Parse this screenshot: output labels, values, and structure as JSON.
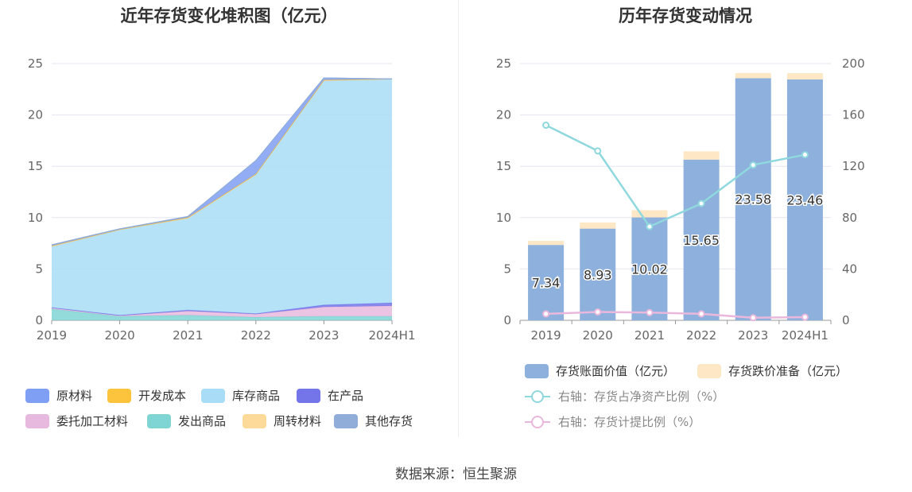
{
  "left_chart": {
    "title": "近年存货变化堆积图（亿元）",
    "legend": [
      {
        "label": "原材料",
        "color": "#7f9ff5"
      },
      {
        "label": "开发成本",
        "color": "#fbc43c"
      },
      {
        "label": "库存商品",
        "color": "#a9ddf7"
      },
      {
        "label": "在产品",
        "color": "#7575ea"
      },
      {
        "label": "委托加工材料",
        "color": "#e8b9de"
      },
      {
        "label": "发出商品",
        "color": "#7fd5d3"
      },
      {
        "label": "周转材料",
        "color": "#fdd99a"
      },
      {
        "label": "其他存货",
        "color": "#90add9"
      }
    ]
  },
  "right_chart": {
    "title": "历年存货变动情况",
    "legend": [
      {
        "label": "存货账面价值（亿元）",
        "color": "#8eb0dc",
        "kind": "bar"
      },
      {
        "label": "存货跌价准备（亿元）",
        "color": "#fde7c4",
        "kind": "bar"
      },
      {
        "label": "右轴：存货占净资产比例（%）",
        "color": "#8fd8de",
        "kind": "line"
      },
      {
        "label": "右轴：存货计提比例（%）",
        "color": "#eab8dc",
        "kind": "line"
      }
    ]
  },
  "chart_data": [
    {
      "type": "area",
      "title": "近年存货变化堆积图（亿元）",
      "x": [
        "2019",
        "2020",
        "2021",
        "2022",
        "2023",
        "2024H1"
      ],
      "ylim": [
        0,
        25
      ],
      "yticks": [
        0,
        5,
        10,
        15,
        20,
        25
      ],
      "grid": true,
      "legend_position": "bottom",
      "series": [
        {
          "name": "发出商品",
          "color": "#7fd5d3",
          "values": [
            1.1,
            0.4,
            0.5,
            0.3,
            0.4,
            0.4
          ]
        },
        {
          "name": "委托加工材料",
          "color": "#e8b9de",
          "values": [
            0.1,
            0.05,
            0.4,
            0.3,
            0.9,
            1.0
          ]
        },
        {
          "name": "在产品",
          "color": "#7575ea",
          "values": [
            0.05,
            0.05,
            0.1,
            0.05,
            0.2,
            0.3
          ]
        },
        {
          "name": "库存商品",
          "color": "#a9ddf7",
          "values": [
            5.9,
            8.3,
            8.9,
            13.5,
            21.8,
            21.8
          ]
        },
        {
          "name": "周转材料",
          "color": "#fdd99a",
          "values": [
            0.1,
            0.05,
            0.1,
            0.1,
            0.1,
            0.0
          ]
        },
        {
          "name": "开发成本",
          "color": "#fbc43c",
          "values": [
            0.0,
            0.0,
            0.0,
            0.0,
            0.0,
            0.0
          ]
        },
        {
          "name": "原材料",
          "color": "#7f9ff5",
          "values": [
            0.1,
            0.05,
            0.1,
            1.3,
            0.2,
            0.0
          ]
        },
        {
          "name": "其他存货",
          "color": "#90add9",
          "values": [
            0.0,
            0.0,
            0.0,
            0.0,
            0.0,
            0.0
          ]
        }
      ]
    },
    {
      "type": "bar",
      "title": "历年存货变动情况",
      "categories": [
        "2019",
        "2020",
        "2021",
        "2022",
        "2023",
        "2024H1"
      ],
      "ylim_left": [
        0,
        25
      ],
      "yticks_left": [
        0,
        5,
        10,
        15,
        20,
        25
      ],
      "ylim_right": [
        0,
        200
      ],
      "yticks_right": [
        0,
        40,
        80,
        120,
        160,
        200
      ],
      "grid": true,
      "legend_position": "bottom",
      "series": [
        {
          "name": "存货账面价值（亿元）",
          "axis": "left",
          "stacked": true,
          "color": "#8eb0dc",
          "values": [
            7.34,
            8.93,
            10.02,
            15.65,
            23.58,
            23.46
          ],
          "labels": [
            "7.34",
            "8.93",
            "10.02",
            "15.65",
            "23.58",
            "23.46"
          ]
        },
        {
          "name": "存货跌价准备（亿元）",
          "axis": "left",
          "stacked": true,
          "color": "#fde7c4",
          "values": [
            0.4,
            0.6,
            0.7,
            0.8,
            0.5,
            0.6
          ]
        },
        {
          "name": "右轴：存货占净资产比例（%）",
          "axis": "right",
          "type": "line",
          "color": "#8fd8de",
          "values": [
            152,
            132,
            73,
            91,
            121,
            129
          ]
        },
        {
          "name": "右轴：存货计提比例（%）",
          "axis": "right",
          "type": "line",
          "color": "#eab8dc",
          "values": [
            5,
            6.5,
            6,
            5,
            2,
            2.5
          ]
        }
      ]
    }
  ],
  "source": "数据来源：恒生聚源"
}
